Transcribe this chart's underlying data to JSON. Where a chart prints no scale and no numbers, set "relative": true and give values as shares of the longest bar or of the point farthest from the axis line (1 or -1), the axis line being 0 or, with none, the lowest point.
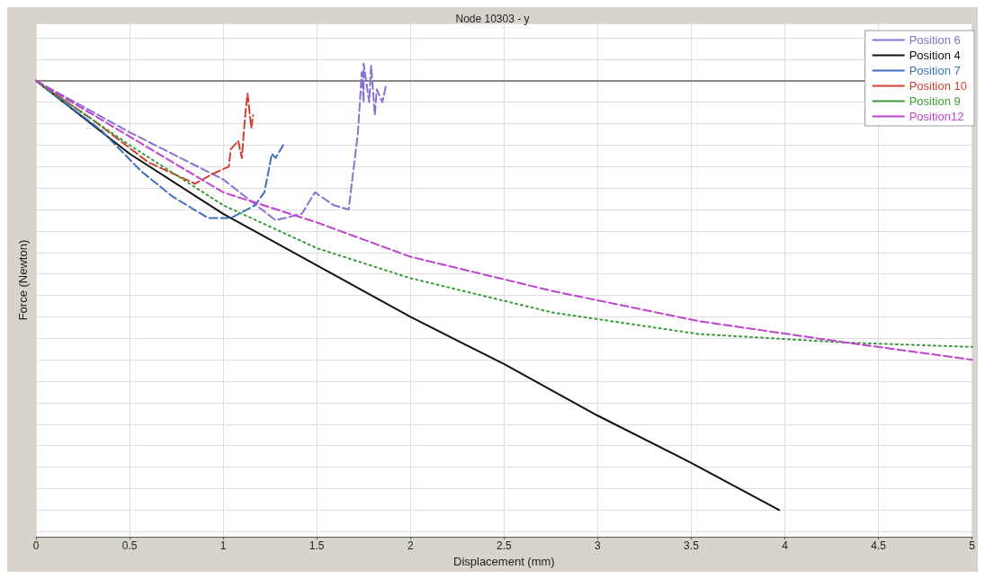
{
  "chart_data": {
    "type": "line",
    "title": "Node 10303 - y",
    "xlabel": "Displacement (mm)",
    "ylabel": "Force (Newton)",
    "relative": true,
    "xlim": [
      0,
      5
    ],
    "xticks": [
      0,
      0.5,
      1,
      1.5,
      2,
      2.5,
      3,
      3.5,
      4,
      4.5,
      5
    ],
    "grid": true,
    "legend": "top right",
    "marker": "none",
    "series": [
      {
        "name": "Position 6",
        "color": "#8a70d0",
        "line_style": "dashed",
        "x": [
          0,
          0.5,
          1,
          1.28,
          1.42,
          1.49,
          1.59,
          1.67,
          1.72,
          1.74,
          1.75,
          1.75,
          1.78,
          1.79,
          1.81,
          1.82,
          1.85,
          1.87
        ],
        "values": [
          0,
          -0.12,
          -0.23,
          -0.325,
          -0.31,
          -0.26,
          -0.29,
          -0.3,
          -0.12,
          0.02,
          -0.05,
          0.04,
          -0.05,
          0.035,
          -0.08,
          -0.02,
          -0.05,
          -0.01
        ]
      },
      {
        "name": "Position 4",
        "color": "#111111",
        "line_style": "solid",
        "x": [
          0,
          0.5,
          1,
          1.5,
          2,
          2.5,
          3,
          3.5,
          3.97
        ],
        "values": [
          0,
          -0.17,
          -0.31,
          -0.43,
          -0.55,
          -0.66,
          -0.78,
          -0.89,
          -1
        ]
      },
      {
        "name": "Position 7",
        "color": "#3f6fbf",
        "line_style": "dashed",
        "x": [
          0,
          0.35,
          0.56,
          0.73,
          0.92,
          1.04,
          1.17,
          1.22,
          1.26,
          1.28,
          1.32
        ],
        "values": [
          0,
          -0.116,
          -0.21,
          -0.27,
          -0.32,
          -0.32,
          -0.29,
          -0.26,
          -0.17,
          -0.18,
          -0.15
        ]
      },
      {
        "name": "Position 10",
        "color": "#d04030",
        "line_style": "dashed",
        "x": [
          0,
          0.3,
          0.6,
          0.85,
          0.93,
          1.03,
          1.04,
          1.08,
          1.1,
          1.11,
          1.12,
          1.13,
          1.15,
          1.16
        ],
        "values": [
          0,
          -0.09,
          -0.19,
          -0.24,
          -0.22,
          -0.2,
          -0.16,
          -0.14,
          -0.18,
          -0.12,
          -0.07,
          -0.03,
          -0.11,
          -0.08
        ]
      },
      {
        "name": "Position 9",
        "color": "#3a9a3a",
        "line_style": "dotted",
        "x": [
          0,
          0.5,
          1,
          1.5,
          2,
          2.76,
          3.54,
          4.33,
          5
        ],
        "values": [
          0,
          -0.15,
          -0.29,
          -0.39,
          -0.46,
          -0.54,
          -0.59,
          -0.61,
          -0.62
        ]
      },
      {
        "name": "Position12",
        "color": "#c040d0",
        "line_style": "dashed",
        "x": [
          0,
          0.5,
          1,
          1.5,
          2,
          2.76,
          3.54,
          4.33,
          5
        ],
        "values": [
          0,
          -0.13,
          -0.26,
          -0.33,
          -0.41,
          -0.49,
          -0.56,
          -0.61,
          -0.65
        ]
      }
    ]
  }
}
